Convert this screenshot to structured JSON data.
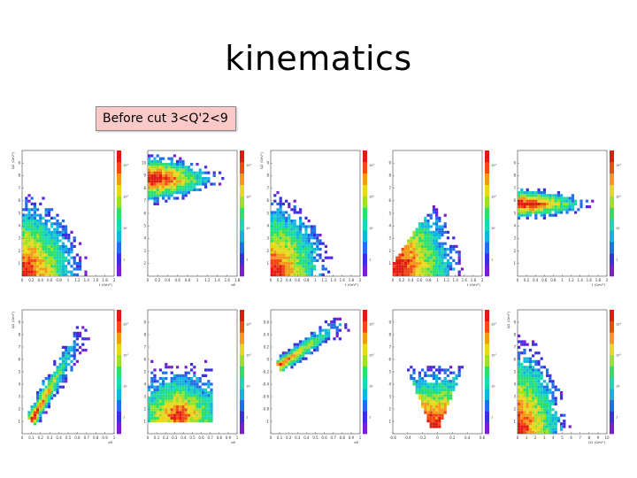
{
  "slide": {
    "title": "kinematics",
    "cut_label": "Before cut 3<Q'2<9"
  },
  "colors": {
    "palette": [
      "#7a1fd0",
      "#3b2fe0",
      "#1f6fe8",
      "#14b4e0",
      "#19d9b0",
      "#2ee06a",
      "#9de02a",
      "#e8d81e",
      "#f59a18",
      "#f04a14",
      "#e01a10"
    ],
    "cut_label_bg": "#fcc9c9"
  },
  "chart_data": [
    {
      "type": "heatmap",
      "ylabel": "Q2 (GeV²)",
      "xlabel": "t (GeV²)",
      "xticks": [
        "0",
        "0.2",
        "0.4",
        "0.6",
        "0.8",
        "1",
        "1.2",
        "1.4",
        "1.6",
        "1.8",
        "2"
      ],
      "yticks": [
        "1",
        "2",
        "3",
        "4",
        "5",
        "6",
        "7",
        "8",
        "9"
      ],
      "zticks": [
        "1",
        "10",
        "10²",
        "10³"
      ],
      "zscale": "log"
    },
    {
      "type": "heatmap",
      "ylabel": "",
      "xlabel": "xB",
      "xticks": [
        "0",
        "0.2",
        "0.4",
        "0.6",
        "0.8",
        "1",
        "1.2",
        "1.4",
        "1.6",
        "1.8"
      ],
      "yticks": [
        "2",
        "3",
        "4",
        "5",
        "6",
        "7",
        "8",
        "9",
        "10"
      ],
      "zticks": [
        "1",
        "10",
        "10²",
        "10³"
      ],
      "zscale": "log"
    },
    {
      "type": "heatmap",
      "ylabel": "Q2 (GeV²)",
      "xlabel": "t (GeV²)",
      "xticks": [
        "0",
        "0.2",
        "0.4",
        "0.6",
        "0.8",
        "1",
        "1.2",
        "1.4",
        "1.6",
        "1.8",
        "2"
      ],
      "yticks": [
        "1",
        "2",
        "3",
        "4",
        "5",
        "6",
        "7",
        "8",
        "9"
      ],
      "zticks": [
        "1",
        "10",
        "10²",
        "10³"
      ],
      "zscale": "log"
    },
    {
      "type": "heatmap",
      "ylabel": "",
      "xlabel": "t (GeV²)",
      "xticks": [
        "0",
        "0.2",
        "0.4",
        "0.6",
        "0.8",
        "1",
        "1.2",
        "1.4",
        "1.6",
        "1.8",
        "2"
      ],
      "yticks": [
        "1",
        "2",
        "3",
        "4",
        "5",
        "6",
        "7",
        "8",
        "9"
      ],
      "zticks": [
        "1",
        "10",
        "10²",
        "10³"
      ],
      "zscale": "log"
    },
    {
      "type": "heatmap",
      "ylabel": "",
      "xlabel": "t (GeV²)",
      "xticks": [
        "0",
        "0.2",
        "0.4",
        "0.6",
        "0.8",
        "1",
        "1.2",
        "1.4",
        "1.6",
        "1.8",
        "2"
      ],
      "yticks": [
        "1",
        "2",
        "3",
        "4",
        "5",
        "6",
        "7",
        "8",
        "9"
      ],
      "zticks": [
        "1",
        "10",
        "10²",
        "10³"
      ],
      "zscale": "log"
    },
    {
      "type": "heatmap",
      "ylabel": "Q2 (GeV²)",
      "xlabel": "xB",
      "xticks": [
        "0",
        "0.1",
        "0.2",
        "0.3",
        "0.4",
        "0.5",
        "0.6",
        "0.7",
        "0.8",
        "0.9",
        "1"
      ],
      "yticks": [
        "1",
        "2",
        "3",
        "4",
        "5",
        "6",
        "7",
        "8",
        "9"
      ],
      "zticks": [
        "1",
        "10",
        "10²",
        "10³"
      ],
      "zscale": "log"
    },
    {
      "type": "heatmap",
      "ylabel": "",
      "xlabel": "xB",
      "xticks": [
        "0",
        "0.1",
        "0.2",
        "0.3",
        "0.4",
        "0.5",
        "0.6",
        "0.7",
        "0.8",
        "0.9",
        "1"
      ],
      "yticks": [
        "1",
        "2",
        "3",
        "4",
        "5",
        "6",
        "7",
        "8",
        "9"
      ],
      "zticks": [
        "1",
        "10",
        "10²",
        "10³"
      ],
      "zscale": "log"
    },
    {
      "type": "heatmap",
      "ylabel": "",
      "xlabel": "xB",
      "xticks": [
        "0",
        "0.1",
        "0.2",
        "0.3",
        "0.4",
        "0.5",
        "0.6",
        "0.7",
        "0.8",
        "0.9",
        "1"
      ],
      "yticks": [
        "-1",
        "-0.8",
        "-0.6",
        "-0.4",
        "-0.2",
        "0",
        "0.2",
        "0.4",
        "0.6"
      ],
      "zticks": [
        "1",
        "10",
        "10²",
        "10³"
      ],
      "zscale": "log"
    },
    {
      "type": "heatmap",
      "ylabel": "",
      "xlabel": "",
      "xticks": [
        "-0.6",
        "-0.4",
        "-0.2",
        "0",
        "0.2",
        "0.4",
        "0.6"
      ],
      "yticks": [
        "1",
        "2",
        "3",
        "4",
        "5",
        "6",
        "7",
        "8",
        "9"
      ],
      "zticks": [
        "1",
        "10",
        "10²",
        "10³"
      ],
      "zscale": "log"
    },
    {
      "type": "heatmap",
      "ylabel": "Q2 (GeV²)",
      "xlabel": "Q2 (GeV²)",
      "xticks": [
        "0",
        "1",
        "2",
        "3",
        "4",
        "5",
        "6",
        "7",
        "8",
        "9",
        "10"
      ],
      "yticks": [
        "1",
        "2",
        "3",
        "4",
        "5",
        "6",
        "7",
        "8",
        "9"
      ],
      "zticks": [
        "1",
        "10",
        "10²",
        "10³"
      ],
      "zscale": "log"
    }
  ]
}
